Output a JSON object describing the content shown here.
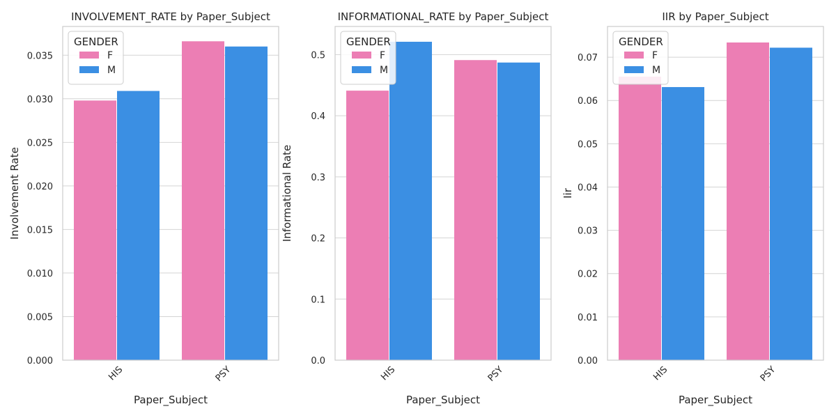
{
  "chart_data": [
    {
      "type": "bar",
      "title": "INVOLVEMENT_RATE by Paper_Subject",
      "xlabel": "Paper_Subject",
      "ylabel": "Involvement Rate",
      "categories": [
        "HIS",
        "PSY"
      ],
      "ylim": [
        0,
        0.0383
      ],
      "yticks": [
        "0.000",
        "0.005",
        "0.010",
        "0.015",
        "0.020",
        "0.025",
        "0.030",
        "0.035"
      ],
      "ytick_values": [
        0,
        0.005,
        0.01,
        0.015,
        0.02,
        0.025,
        0.03,
        0.035
      ],
      "grid": "horizontal",
      "legend": {
        "title": "GENDER",
        "placement": "top-left"
      },
      "series": [
        {
          "name": "F",
          "values": [
            0.0298,
            0.0366
          ]
        },
        {
          "name": "M",
          "values": [
            0.0309,
            0.036
          ]
        }
      ]
    },
    {
      "type": "bar",
      "title": "INFORMATIONAL_RATE by Paper_Subject",
      "xlabel": "Paper_Subject",
      "ylabel": "Informational Rate",
      "categories": [
        "HIS",
        "PSY"
      ],
      "ylim": [
        0,
        0.546
      ],
      "yticks": [
        "0.0",
        "0.1",
        "0.2",
        "0.3",
        "0.4",
        "0.5"
      ],
      "ytick_values": [
        0,
        0.1,
        0.2,
        0.3,
        0.4,
        0.5
      ],
      "grid": "horizontal",
      "legend": {
        "title": "GENDER",
        "placement": "top-left"
      },
      "series": [
        {
          "name": "F",
          "values": [
            0.441,
            0.491
          ]
        },
        {
          "name": "M",
          "values": [
            0.521,
            0.487
          ]
        }
      ]
    },
    {
      "type": "bar",
      "title": "IIR by Paper_Subject",
      "xlabel": "Paper_Subject",
      "ylabel": "Iir",
      "categories": [
        "HIS",
        "PSY"
      ],
      "ylim": [
        0,
        0.0771
      ],
      "yticks": [
        "0.00",
        "0.01",
        "0.02",
        "0.03",
        "0.04",
        "0.05",
        "0.06",
        "0.07"
      ],
      "ytick_values": [
        0,
        0.01,
        0.02,
        0.03,
        0.04,
        0.05,
        0.06,
        0.07
      ],
      "grid": "horizontal",
      "legend": {
        "title": "GENDER",
        "placement": "top-left"
      },
      "series": [
        {
          "name": "F",
          "values": [
            0.0655,
            0.0734
          ]
        },
        {
          "name": "M",
          "values": [
            0.0631,
            0.0722
          ]
        }
      ]
    }
  ],
  "colors": {
    "F": "#ec7eb4",
    "M": "#3b8fe3",
    "grid": "#d4d4d4",
    "spine": "#cccccc",
    "text": "#262626"
  }
}
